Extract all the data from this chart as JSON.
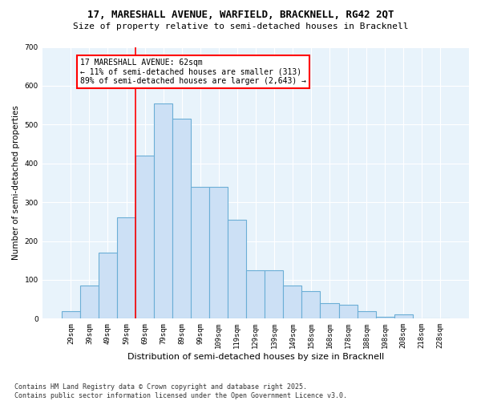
{
  "title_line1": "17, MARESHALL AVENUE, WARFIELD, BRACKNELL, RG42 2QT",
  "title_line2": "Size of property relative to semi-detached houses in Bracknell",
  "xlabel": "Distribution of semi-detached houses by size in Bracknell",
  "ylabel": "Number of semi-detached properties",
  "categories": [
    "29sqm",
    "39sqm",
    "49sqm",
    "59sqm",
    "69sqm",
    "79sqm",
    "89sqm",
    "99sqm",
    "109sqm",
    "119sqm",
    "129sqm",
    "139sqm",
    "149sqm",
    "158sqm",
    "168sqm",
    "178sqm",
    "188sqm",
    "198sqm",
    "208sqm",
    "218sqm",
    "228sqm"
  ],
  "values": [
    20,
    85,
    170,
    260,
    420,
    555,
    515,
    340,
    340,
    255,
    125,
    125,
    85,
    70,
    40,
    35,
    20,
    5,
    10,
    0,
    0
  ],
  "bar_color": "#cce0f5",
  "bar_edge_color": "#6baed6",
  "vline_color": "red",
  "vline_pos": 3.5,
  "annotation_title": "17 MARESHALL AVENUE: 62sqm",
  "annotation_line2": "← 11% of semi-detached houses are smaller (313)",
  "annotation_line3": "89% of semi-detached houses are larger (2,643) →",
  "footer_line1": "Contains HM Land Registry data © Crown copyright and database right 2025.",
  "footer_line2": "Contains public sector information licensed under the Open Government Licence v3.0.",
  "ylim": [
    0,
    700
  ],
  "yticks": [
    0,
    100,
    200,
    300,
    400,
    500,
    600,
    700
  ],
  "bg_color": "#e8f3fb",
  "grid_color": "white",
  "title_fontsize": 9,
  "subtitle_fontsize": 8,
  "ylabel_fontsize": 7.5,
  "xlabel_fontsize": 8,
  "tick_fontsize": 6.5,
  "annot_fontsize": 7,
  "footer_fontsize": 6
}
